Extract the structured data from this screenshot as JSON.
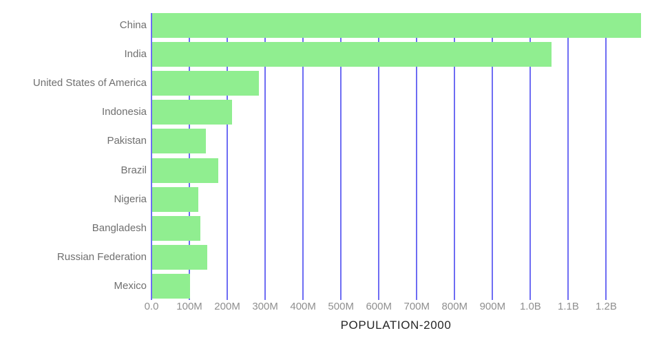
{
  "chart_data": {
    "type": "bar",
    "orientation": "horizontal",
    "title": "POPULATION-2000",
    "categories": [
      "China",
      "India",
      "United States of America",
      "Indonesia",
      "Pakistan",
      "Brazil",
      "Nigeria",
      "Bangladesh",
      "Russian Federation",
      "Mexico"
    ],
    "series": [
      {
        "name": "Population in 2000",
        "values_millions": [
          1290,
          1054,
          282,
          211,
          142,
          175,
          122,
          128,
          146,
          100
        ]
      }
    ],
    "x_axis": {
      "tick_labels": [
        "0.0",
        "100M",
        "200M",
        "300M",
        "400M",
        "500M",
        "600M",
        "700M",
        "800M",
        "900M",
        "1.0B",
        "1.1B",
        "1.2B"
      ],
      "tick_values_millions": [
        0,
        100,
        200,
        300,
        400,
        500,
        600,
        700,
        800,
        900,
        1000,
        1100,
        1200
      ],
      "xlim_millions": [
        0,
        1290
      ]
    },
    "grid": true,
    "legend": "none",
    "colors": {
      "bar": "#90ee90",
      "gridline": "#6d6cf3",
      "category_label": "#6f6f6f",
      "tick_label": "#8f8f8f",
      "title": "#262626",
      "background": "#ffffff"
    }
  }
}
